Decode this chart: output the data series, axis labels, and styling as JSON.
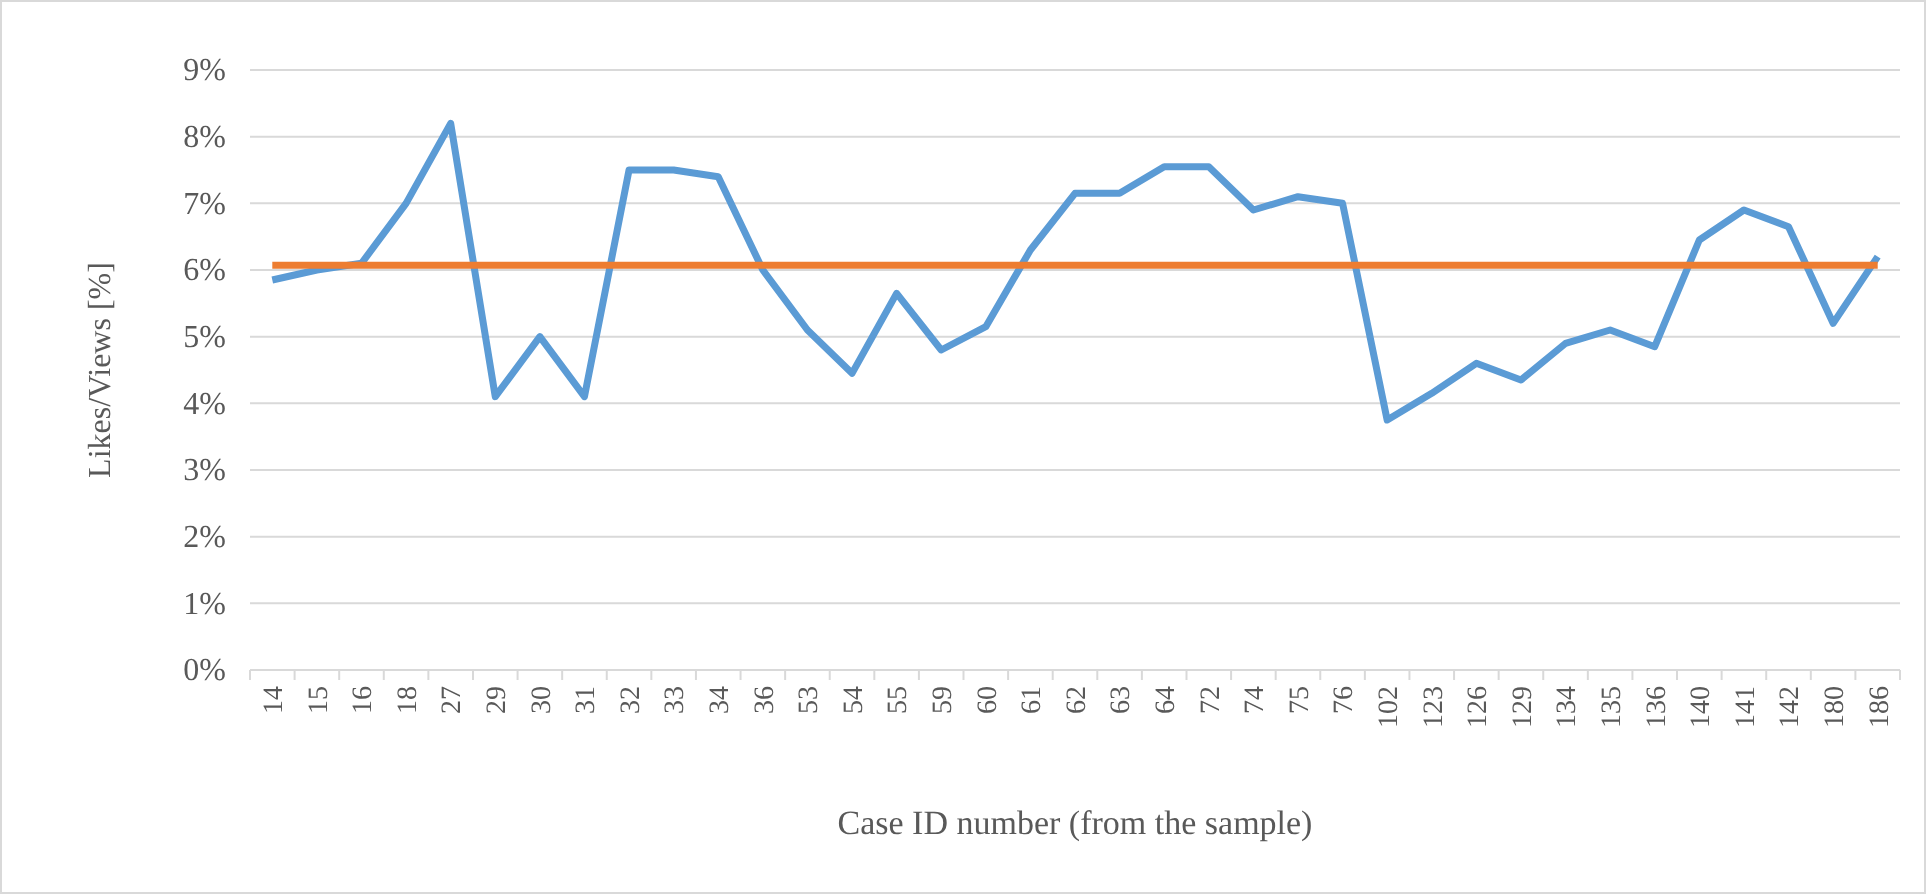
{
  "chart_data": {
    "type": "line",
    "xlabel": "Case ID number (from the sample)",
    "ylabel": "Likes/Views [%]",
    "categories": [
      "14",
      "15",
      "16",
      "18",
      "27",
      "29",
      "30",
      "31",
      "32",
      "33",
      "34",
      "36",
      "53",
      "54",
      "55",
      "59",
      "60",
      "61",
      "62",
      "63",
      "64",
      "72",
      "74",
      "75",
      "76",
      "102",
      "123",
      "126",
      "129",
      "134",
      "135",
      "136",
      "140",
      "141",
      "142",
      "180",
      "186"
    ],
    "series": [
      {
        "color": "#5b9bd5",
        "values": [
          5.85,
          6.0,
          6.1,
          7.0,
          8.2,
          4.1,
          5.0,
          4.1,
          7.5,
          7.5,
          7.4,
          6.0,
          5.1,
          4.45,
          5.65,
          4.8,
          5.15,
          6.3,
          7.15,
          7.15,
          7.55,
          7.55,
          6.9,
          7.1,
          7.0,
          3.75,
          4.15,
          4.6,
          4.35,
          4.9,
          5.1,
          4.85,
          6.45,
          6.9,
          6.65,
          5.2,
          6.2
        ]
      },
      {
        "color": "#ed7d31",
        "values": [
          6.07,
          6.07,
          6.07,
          6.07,
          6.07,
          6.07,
          6.07,
          6.07,
          6.07,
          6.07,
          6.07,
          6.07,
          6.07,
          6.07,
          6.07,
          6.07,
          6.07,
          6.07,
          6.07,
          6.07,
          6.07,
          6.07,
          6.07,
          6.07,
          6.07,
          6.07,
          6.07,
          6.07,
          6.07,
          6.07,
          6.07,
          6.07,
          6.07,
          6.07,
          6.07,
          6.07,
          6.07
        ]
      }
    ],
    "ylim": [
      0,
      9
    ],
    "yticks": [
      {
        "value": 0,
        "label": "0%"
      },
      {
        "value": 1,
        "label": "1%"
      },
      {
        "value": 2,
        "label": "2%"
      },
      {
        "value": 3,
        "label": "3%"
      },
      {
        "value": 4,
        "label": "4%"
      },
      {
        "value": 5,
        "label": "5%"
      },
      {
        "value": 6,
        "label": "6%"
      },
      {
        "value": 7,
        "label": "7%"
      },
      {
        "value": 8,
        "label": "8%"
      },
      {
        "value": 9,
        "label": "9%"
      }
    ],
    "grid": "y",
    "marker": "none",
    "line_style": "solid"
  }
}
